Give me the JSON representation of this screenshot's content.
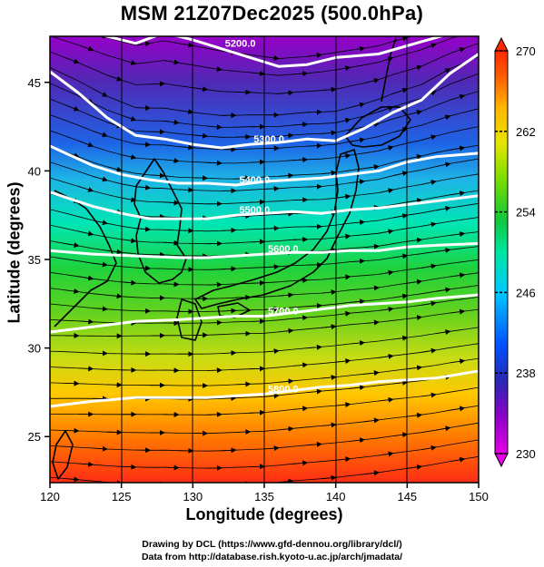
{
  "title": "MSM 21Z07Dec2025 (500.0hPa)",
  "chart_data": {
    "type": "heatmap",
    "title": "MSM 21Z07Dec2025 (500.0hPa)",
    "xlabel": "Longitude (degrees)",
    "ylabel": "Latitude  (degrees)",
    "xlim": [
      120,
      150
    ],
    "ylim": [
      22.4,
      47.6
    ],
    "xticks": [
      120,
      125,
      130,
      135,
      140,
      145,
      150
    ],
    "yticks": [
      25,
      30,
      35,
      40,
      45
    ],
    "colorbar": {
      "min": 230,
      "max": 270,
      "ticks": [
        230,
        238,
        246,
        254,
        262,
        270
      ],
      "colors": [
        "#e600e6",
        "#8f00c8",
        "#2828b4",
        "#0050ff",
        "#00c8ff",
        "#00e6a0",
        "#10c83c",
        "#78dc00",
        "#e6e600",
        "#ffb400",
        "#ff6400",
        "#ff2800"
      ],
      "extend": "both"
    },
    "contours": [
      {
        "label": "5200.0",
        "lon": [
          120,
          123,
          126,
          128,
          130,
          132,
          134,
          136,
          138,
          140,
          143,
          146,
          150
        ],
        "lat": [
          48.2,
          47.8,
          47.2,
          47.8,
          47.4,
          46.9,
          46.4,
          45.9,
          46.0,
          46.4,
          46.6,
          47.3,
          48.2
        ]
      },
      {
        "label": "5300.0",
        "lon": [
          120,
          122,
          124,
          126,
          128,
          130,
          132,
          134,
          136,
          138,
          140,
          142,
          144,
          146,
          148,
          150
        ],
        "lat": [
          45.6,
          44.4,
          43.0,
          42.0,
          41.8,
          41.5,
          41.3,
          41.5,
          41.6,
          41.8,
          41.7,
          42.4,
          43.3,
          44.0,
          45.5,
          46.6
        ]
      },
      {
        "label": "5400.0",
        "lon": [
          120,
          123,
          125,
          127,
          129,
          131,
          133,
          135,
          137,
          139,
          141,
          143,
          145,
          147,
          150
        ],
        "lat": [
          41.4,
          40.3,
          39.8,
          39.5,
          39.3,
          39.3,
          39.2,
          39.4,
          39.5,
          39.6,
          39.8,
          40.0,
          40.5,
          40.8,
          41.0
        ]
      },
      {
        "label": "5500.0",
        "lon": [
          120,
          123,
          125,
          127,
          129,
          131,
          133,
          135,
          137,
          139,
          141,
          143,
          145,
          147,
          150
        ],
        "lat": [
          38.8,
          38.0,
          37.6,
          37.3,
          37.3,
          37.3,
          37.5,
          37.6,
          37.7,
          37.6,
          37.8,
          37.9,
          38.1,
          38.3,
          38.6
        ]
      },
      {
        "label": "5600.0",
        "lon": [
          120,
          123,
          126,
          129,
          131,
          133,
          135,
          137,
          139,
          141,
          143,
          145,
          147,
          150
        ],
        "lat": [
          35.5,
          35.3,
          35.2,
          35.1,
          35.1,
          35.2,
          35.3,
          35.4,
          35.4,
          35.5,
          35.5,
          35.7,
          35.8,
          35.9
        ]
      },
      {
        "label": "5700.0",
        "lon": [
          120,
          123,
          126,
          129,
          131,
          133,
          135,
          137,
          139,
          141,
          143,
          145,
          147,
          150
        ],
        "lat": [
          30.9,
          31.2,
          31.5,
          31.6,
          31.7,
          31.8,
          31.8,
          32.0,
          32.2,
          32.4,
          32.5,
          32.6,
          32.8,
          33.0
        ]
      },
      {
        "label": "5800.0",
        "lon": [
          120,
          123,
          126,
          129,
          131,
          133,
          135,
          137,
          139,
          141,
          143,
          145,
          147,
          150
        ],
        "lat": [
          26.7,
          27.0,
          27.2,
          27.2,
          27.2,
          27.3,
          27.4,
          27.6,
          27.8,
          27.9,
          28.1,
          28.2,
          28.3,
          28.7
        ]
      }
    ]
  },
  "footer": {
    "credit1": "Drawing by DCL (https://www.gfd-dennou.org/library/dcl/)",
    "credit2": "Data from http://database.rish.kyoto-u.ac.jp/arch/jmadata/"
  }
}
